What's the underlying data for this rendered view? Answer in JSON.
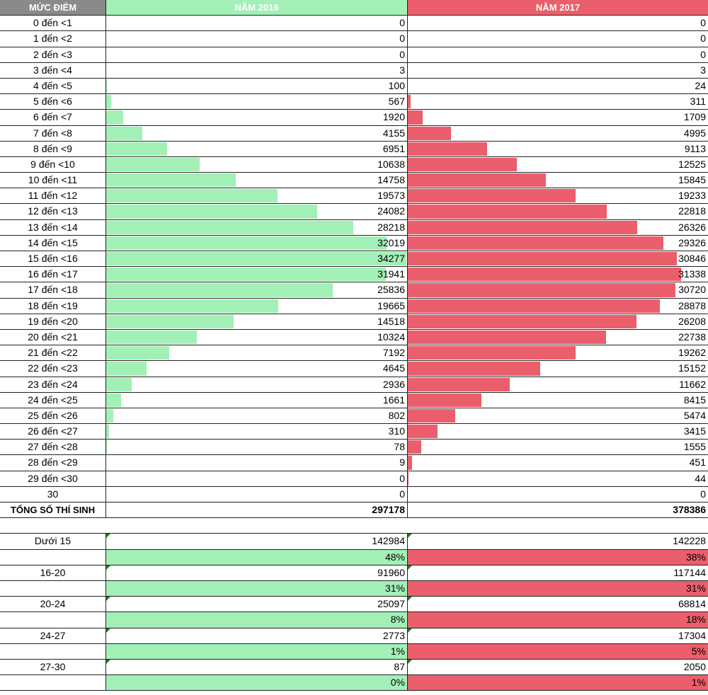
{
  "header": {
    "col0": "MỨC ĐIỂM",
    "col1": "NĂM 2016",
    "col2": "NĂM 2017"
  },
  "colors": {
    "y2016": "#a3f0b7",
    "y2017": "#ea5f6b",
    "header_gray": "#8a8a8a"
  },
  "rows": [
    {
      "label": "0 đến <1",
      "v2016": "0",
      "v2017": "0"
    },
    {
      "label": "1 đến <2",
      "v2016": "0",
      "v2017": "0"
    },
    {
      "label": "2 đến <3",
      "v2016": "0",
      "v2017": "0"
    },
    {
      "label": "3 đến <4",
      "v2016": "3",
      "v2017": "3"
    },
    {
      "label": "4 đến <5",
      "v2016": "100",
      "v2017": "24"
    },
    {
      "label": "5 đến <6",
      "v2016": "567",
      "v2017": "311"
    },
    {
      "label": "6 đến <7",
      "v2016": "1920",
      "v2017": "1709"
    },
    {
      "label": "7 đến <8",
      "v2016": "4155",
      "v2017": "4995"
    },
    {
      "label": "8 đến <9",
      "v2016": "6951",
      "v2017": "9113"
    },
    {
      "label": "9 đến <10",
      "v2016": "10638",
      "v2017": "12525"
    },
    {
      "label": "10 đến <11",
      "v2016": "14758",
      "v2017": "15845"
    },
    {
      "label": "11 đến <12",
      "v2016": "19573",
      "v2017": "19233"
    },
    {
      "label": "12 đến <13",
      "v2016": "24082",
      "v2017": "22818"
    },
    {
      "label": "13 đến <14",
      "v2016": "28218",
      "v2017": "26326"
    },
    {
      "label": "14 đến <15",
      "v2016": "32019",
      "v2017": "29326"
    },
    {
      "label": "15 đến <16",
      "v2016": "34277",
      "v2017": "30846"
    },
    {
      "label": "16 đến <17",
      "v2016": "31941",
      "v2017": "31338"
    },
    {
      "label": "17 đến <18",
      "v2016": "25836",
      "v2017": "30720"
    },
    {
      "label": "18 đến <19",
      "v2016": "19665",
      "v2017": "28878"
    },
    {
      "label": "19 đến <20",
      "v2016": "14518",
      "v2017": "26208"
    },
    {
      "label": "20 đến <21",
      "v2016": "10324",
      "v2017": "22738"
    },
    {
      "label": "21 đến <22",
      "v2016": "7192",
      "v2017": "19262"
    },
    {
      "label": "22 đến <23",
      "v2016": "4645",
      "v2017": "15152"
    },
    {
      "label": "23 đến <24",
      "v2016": "2936",
      "v2017": "11662"
    },
    {
      "label": "24 đến <25",
      "v2016": "1661",
      "v2017": "8415"
    },
    {
      "label": "25 đến <26",
      "v2016": "802",
      "v2017": "5474"
    },
    {
      "label": "26 đến <27",
      "v2016": "310",
      "v2017": "3415"
    },
    {
      "label": "27 đến <28",
      "v2016": "78",
      "v2017": "1555"
    },
    {
      "label": "28 đến <29",
      "v2016": "9",
      "v2017": "451"
    },
    {
      "label": "29 đến <30",
      "v2016": "0",
      "v2017": "44"
    },
    {
      "label": "30",
      "v2016": "0",
      "v2017": "0"
    }
  ],
  "total": {
    "label": "TỔNG SỐ THÍ SINH",
    "v2016": "297178",
    "v2017": "378386"
  },
  "summary": [
    {
      "label": "Dưới 15",
      "v2016": "142984",
      "v2017": "142228",
      "p2016": "48%",
      "p2017": "38%"
    },
    {
      "label": "16-20",
      "v2016": "91960",
      "v2017": "117144",
      "p2016": "31%",
      "p2017": "31%"
    },
    {
      "label": "20-24",
      "v2016": "25097",
      "v2017": "68814",
      "p2016": "8%",
      "p2017": "18%"
    },
    {
      "label": "24-27",
      "v2016": "2773",
      "v2017": "17304",
      "p2016": "1%",
      "p2017": "5%"
    },
    {
      "label": "27-30",
      "v2016": "87",
      "v2017": "2050",
      "p2016": "0%",
      "p2017": "1%"
    }
  ]
}
